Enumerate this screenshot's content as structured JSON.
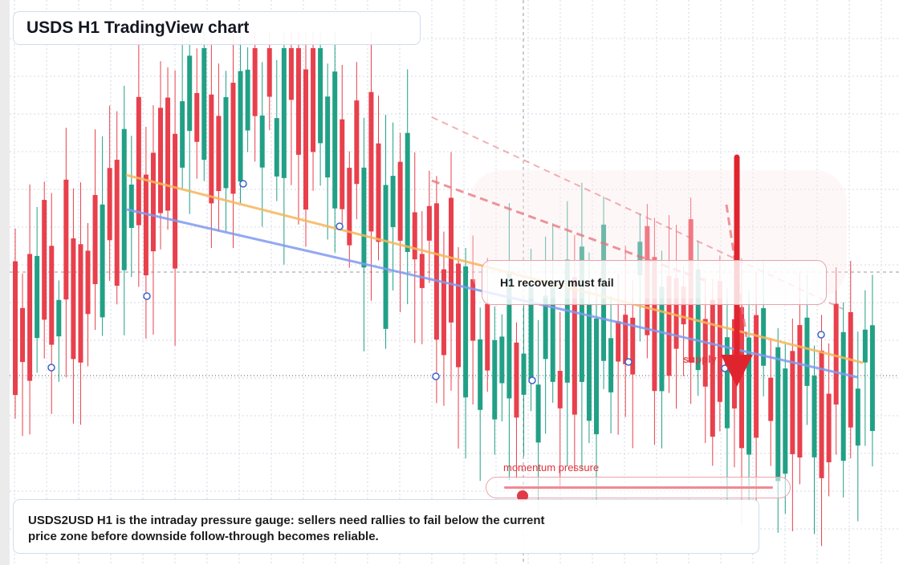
{
  "title": "USDS H1 TradingView chart",
  "callout": {
    "text": "H1 recovery must fail"
  },
  "supply_label": "supply",
  "momentum": {
    "label": "momentum pressure",
    "level": 0.07
  },
  "caption": "USDS2USD H1 is the intraday pressure gauge: sellers need rallies to fail below the current price zone before downside follow-through becomes reliable.",
  "colors": {
    "bull": "#22a086",
    "bear": "#e8404c",
    "trendline_orange": "#f5b75c",
    "trendline_blue": "#7f9bf0",
    "resistance_dashed": "#e8727a",
    "arrow": "#e0242e",
    "grid": "#d3dae6",
    "crosshair": "#9a9a9a"
  },
  "chart_data": {
    "type": "candlestick",
    "x_count": 119,
    "y_axis": {
      "min": 0,
      "max": 100
    },
    "grid": true,
    "series_count": 1
  }
}
